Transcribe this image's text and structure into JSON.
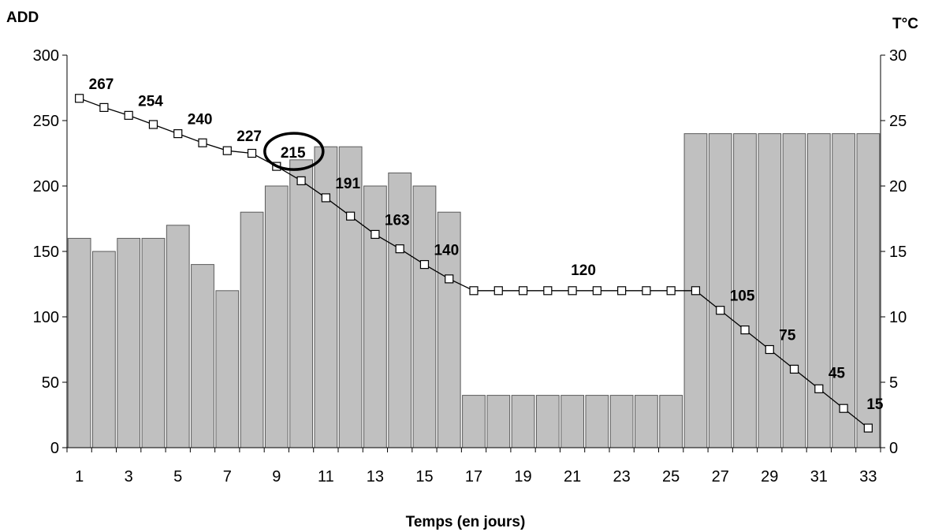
{
  "chart_data": {
    "type": "bar+line",
    "xlabel": "Temps (en jours)",
    "ylabel_left": "ADD",
    "ylabel_right": "T°C",
    "x": [
      1,
      2,
      3,
      4,
      5,
      6,
      7,
      8,
      9,
      10,
      11,
      12,
      13,
      14,
      15,
      16,
      17,
      18,
      19,
      20,
      21,
      22,
      23,
      24,
      25,
      26,
      27,
      28,
      29,
      30,
      31,
      32,
      33
    ],
    "x_tick_labels": [
      "1",
      "3",
      "5",
      "7",
      "9",
      "11",
      "13",
      "15",
      "17",
      "19",
      "21",
      "23",
      "25",
      "27",
      "29",
      "31",
      "33"
    ],
    "ylim_left": [
      0,
      300
    ],
    "yticks_left": [
      "0",
      "50",
      "100",
      "150",
      "200",
      "250",
      "300"
    ],
    "ylim_right": [
      0,
      30
    ],
    "yticks_right": [
      "0",
      "5",
      "10",
      "15",
      "20",
      "25",
      "30"
    ],
    "series": [
      {
        "type": "bar",
        "axis": "right",
        "color": "#c0c0c0",
        "values": [
          16,
          15,
          16,
          16,
          17,
          14,
          12,
          18,
          20,
          22,
          23,
          23,
          20,
          21,
          20,
          18,
          4,
          4,
          4,
          4,
          4,
          4,
          4,
          4,
          4,
          24,
          24,
          24,
          24,
          24,
          24,
          24,
          24
        ]
      },
      {
        "type": "line",
        "axis": "left",
        "color": "#000000",
        "marker": "open-square",
        "values": [
          267,
          260,
          254,
          247,
          240,
          233,
          227,
          225,
          215,
          204,
          191,
          177,
          163,
          152,
          140,
          129,
          120,
          120,
          120,
          120,
          120,
          120,
          120,
          120,
          120,
          120,
          105,
          90,
          75,
          60,
          45,
          30,
          15
        ]
      }
    ],
    "data_labels": [
      {
        "x": 1,
        "text": "267"
      },
      {
        "x": 3,
        "text": "254"
      },
      {
        "x": 5,
        "text": "240"
      },
      {
        "x": 7,
        "text": "227"
      },
      {
        "x": 9,
        "text": "215",
        "circled": true
      },
      {
        "x": 11,
        "text": "191"
      },
      {
        "x": 13,
        "text": "163"
      },
      {
        "x": 15,
        "text": "140"
      },
      {
        "x": 21,
        "text": "120"
      },
      {
        "x": 27,
        "text": "105"
      },
      {
        "x": 29,
        "text": "75"
      },
      {
        "x": 31,
        "text": "45"
      },
      {
        "x": 33,
        "text": "15"
      }
    ],
    "grid": false
  }
}
